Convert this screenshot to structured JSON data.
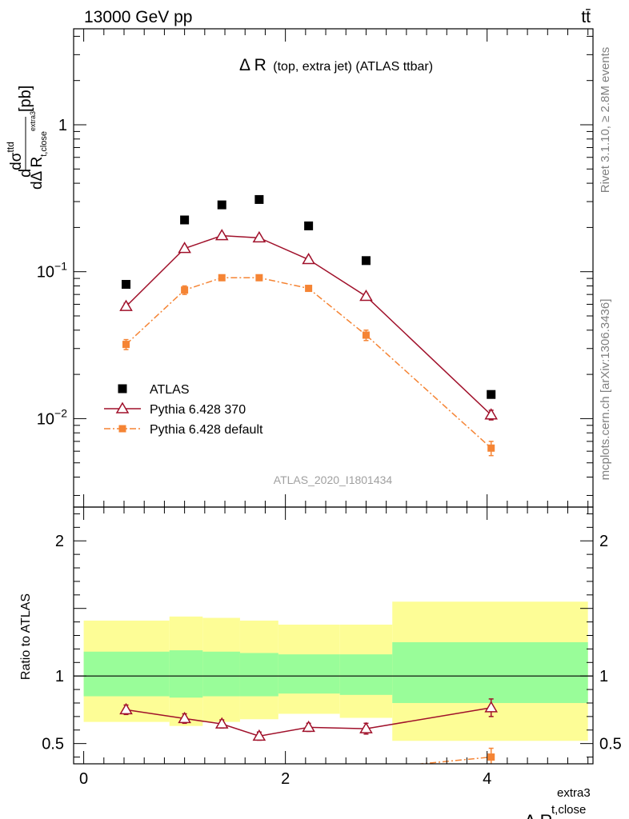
{
  "header": {
    "left": "13000 GeV pp",
    "right": "tt̄"
  },
  "side_text": {
    "rivet": "Rivet 3.1.10, ≥ 2.8M events",
    "mcplots": "mcplots.cern.ch [arXiv:1306.3436]"
  },
  "chart_data": [
    {
      "type": "scatter",
      "title_main": "Δ R",
      "title_sub": "(top, extra jet) (ATLAS ttbar)",
      "watermark": "ATLAS_2020_I1801434",
      "ylabel": "dσ^ttd / dΔ R_t,close^extra3 [pb]",
      "yscale": "log",
      "xlim": [
        -0.1,
        5.05
      ],
      "ylim": [
        0.0025,
        4.5
      ],
      "y_ticks": [
        {
          "value": 0.01,
          "label": "10^-2"
        },
        {
          "value": 0.1,
          "label": "10^-1"
        },
        {
          "value": 1,
          "label": "1"
        }
      ],
      "legend_position": "bottom-left",
      "series": [
        {
          "name": "ATLAS",
          "color": "#000000",
          "marker": "square",
          "points": [
            {
              "x": 0.42,
              "y": 0.082
            },
            {
              "x": 1.0,
              "y": 0.225
            },
            {
              "x": 1.37,
              "y": 0.285
            },
            {
              "x": 1.74,
              "y": 0.31
            },
            {
              "x": 2.23,
              "y": 0.205
            },
            {
              "x": 2.8,
              "y": 0.119
            },
            {
              "x": 4.04,
              "y": 0.0146
            }
          ]
        },
        {
          "name": "Pythia 6.428 370",
          "color": "#a0102a",
          "marker": "open-triangle",
          "line": "solid",
          "points": [
            {
              "x": 0.42,
              "y": 0.058,
              "err": 0.003
            },
            {
              "x": 1.0,
              "y": 0.144,
              "err": 0.006
            },
            {
              "x": 1.37,
              "y": 0.176,
              "err": 0.006
            },
            {
              "x": 1.74,
              "y": 0.17,
              "err": 0.006
            },
            {
              "x": 2.23,
              "y": 0.121,
              "err": 0.005
            },
            {
              "x": 2.8,
              "y": 0.068,
              "err": 0.003
            },
            {
              "x": 4.04,
              "y": 0.0106,
              "err": 0.0008
            }
          ]
        },
        {
          "name": "Pythia 6.428 default",
          "color": "#f58434",
          "marker": "filled-square",
          "line": "dashdot",
          "points": [
            {
              "x": 0.42,
              "y": 0.032,
              "err": 0.0025
            },
            {
              "x": 1.0,
              "y": 0.075,
              "err": 0.005
            },
            {
              "x": 1.37,
              "y": 0.091,
              "err": 0.004
            },
            {
              "x": 1.74,
              "y": 0.091,
              "err": 0.004
            },
            {
              "x": 2.23,
              "y": 0.077,
              "err": 0.003
            },
            {
              "x": 2.8,
              "y": 0.037,
              "err": 0.003
            },
            {
              "x": 4.04,
              "y": 0.0063,
              "err": 0.0007
            }
          ]
        }
      ]
    },
    {
      "type": "scatter",
      "ylabel": "Ratio to ATLAS",
      "xlabel_main": "Δ R",
      "xlabel_sup": "extra3",
      "xlabel_sub": "t,close",
      "xlim": [
        -0.1,
        5.05
      ],
      "ylim": [
        0.35,
        2.25
      ],
      "x_ticks": [
        0,
        2,
        4
      ],
      "y_ticks": [
        0.5,
        1,
        2
      ],
      "reference_line": 1,
      "uncertainty_bands": [
        {
          "x0": 0.0,
          "x1": 0.85,
          "stat_lo": 0.85,
          "stat_hi": 1.18,
          "tot_lo": 0.66,
          "tot_hi": 1.41
        },
        {
          "x0": 0.85,
          "x1": 1.18,
          "stat_lo": 0.84,
          "stat_hi": 1.19,
          "tot_lo": 0.63,
          "tot_hi": 1.44
        },
        {
          "x0": 1.18,
          "x1": 1.55,
          "stat_lo": 0.85,
          "stat_hi": 1.18,
          "tot_lo": 0.66,
          "tot_hi": 1.43
        },
        {
          "x0": 1.55,
          "x1": 1.93,
          "stat_lo": 0.85,
          "stat_hi": 1.17,
          "tot_lo": 0.68,
          "tot_hi": 1.41
        },
        {
          "x0": 1.93,
          "x1": 2.54,
          "stat_lo": 0.87,
          "stat_hi": 1.16,
          "tot_lo": 0.72,
          "tot_hi": 1.38
        },
        {
          "x0": 2.54,
          "x1": 3.06,
          "stat_lo": 0.86,
          "stat_hi": 1.16,
          "tot_lo": 0.69,
          "tot_hi": 1.38
        },
        {
          "x0": 3.06,
          "x1": 5.0,
          "stat_lo": 0.8,
          "stat_hi": 1.25,
          "tot_lo": 0.52,
          "tot_hi": 1.55
        }
      ],
      "series": [
        {
          "name": "Pythia 6.428 370",
          "color": "#a0102a",
          "marker": "open-triangle",
          "line": "solid",
          "points": [
            {
              "x": 0.42,
              "y": 0.75,
              "err": 0.035
            },
            {
              "x": 1.0,
              "y": 0.685,
              "err": 0.035
            },
            {
              "x": 1.37,
              "y": 0.645,
              "err": 0.03
            },
            {
              "x": 1.74,
              "y": 0.555,
              "err": 0.03
            },
            {
              "x": 2.23,
              "y": 0.62,
              "err": 0.03
            },
            {
              "x": 2.8,
              "y": 0.61,
              "err": 0.04
            },
            {
              "x": 4.04,
              "y": 0.765,
              "err": 0.065
            }
          ]
        },
        {
          "name": "Pythia 6.428 default",
          "color": "#f58434",
          "marker": "filled-square",
          "line": "dashdot",
          "points": [
            {
              "x": 2.8,
              "y": 0.31
            },
            {
              "x": 4.04,
              "y": 0.4,
              "err": 0.065
            }
          ]
        }
      ]
    }
  ]
}
